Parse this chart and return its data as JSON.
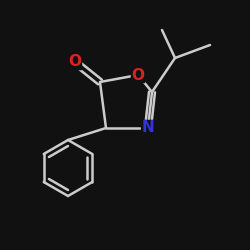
{
  "background_color": "#111111",
  "bond_color": "#cccccc",
  "atom_colors": {
    "O": "#dd2222",
    "N": "#3333dd",
    "C": "#cccccc"
  },
  "figsize": [
    2.5,
    2.5
  ],
  "dpi": 100
}
